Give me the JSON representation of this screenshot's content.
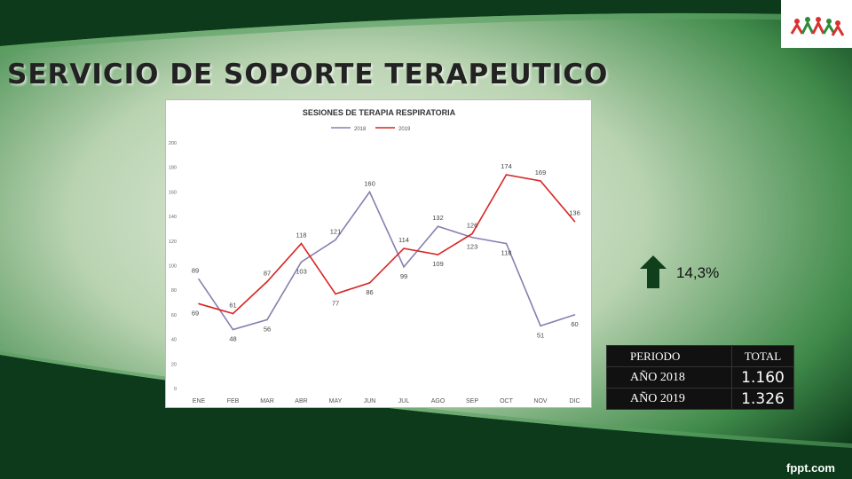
{
  "slide": {
    "title": "SERVICIO DE SOPORTE TERAPEUTICO",
    "change_percent": "14,3%",
    "footer_brand": "fppt.com",
    "colors": {
      "dark_green": "#0c3a1a",
      "mid_green": "#3f8a4a",
      "light_center": "#e6efe0",
      "arrow": "#0f3f1b"
    }
  },
  "summary_table": {
    "headers": [
      "PERIODO",
      "TOTAL"
    ],
    "rows": [
      [
        "AÑO 2018",
        "1.160"
      ],
      [
        "AÑO 2019",
        "1.326"
      ]
    ]
  },
  "chart_data": {
    "type": "line",
    "title": "SESIONES DE TERAPIA RESPIRATORIA",
    "categories": [
      "ENE",
      "FEB",
      "MAR",
      "ABR",
      "MAY",
      "JUN",
      "JUL",
      "AGO",
      "SEP",
      "OCT",
      "NOV",
      "DIC"
    ],
    "series": [
      {
        "name": "2018",
        "color": "#8a7fb0",
        "values": [
          89,
          48,
          56,
          103,
          121,
          160,
          99,
          132,
          123,
          118,
          51,
          60
        ]
      },
      {
        "name": "2019",
        "color": "#d92424",
        "values": [
          69,
          61,
          87,
          118,
          77,
          86,
          114,
          109,
          126,
          174,
          169,
          136
        ]
      }
    ],
    "yticks": [
      "0",
      "20",
      "40",
      "60",
      "80",
      "100",
      "120",
      "140",
      "160",
      "180",
      "200"
    ],
    "ylim": [
      0,
      200
    ],
    "legend_position": "top",
    "grid": false
  }
}
